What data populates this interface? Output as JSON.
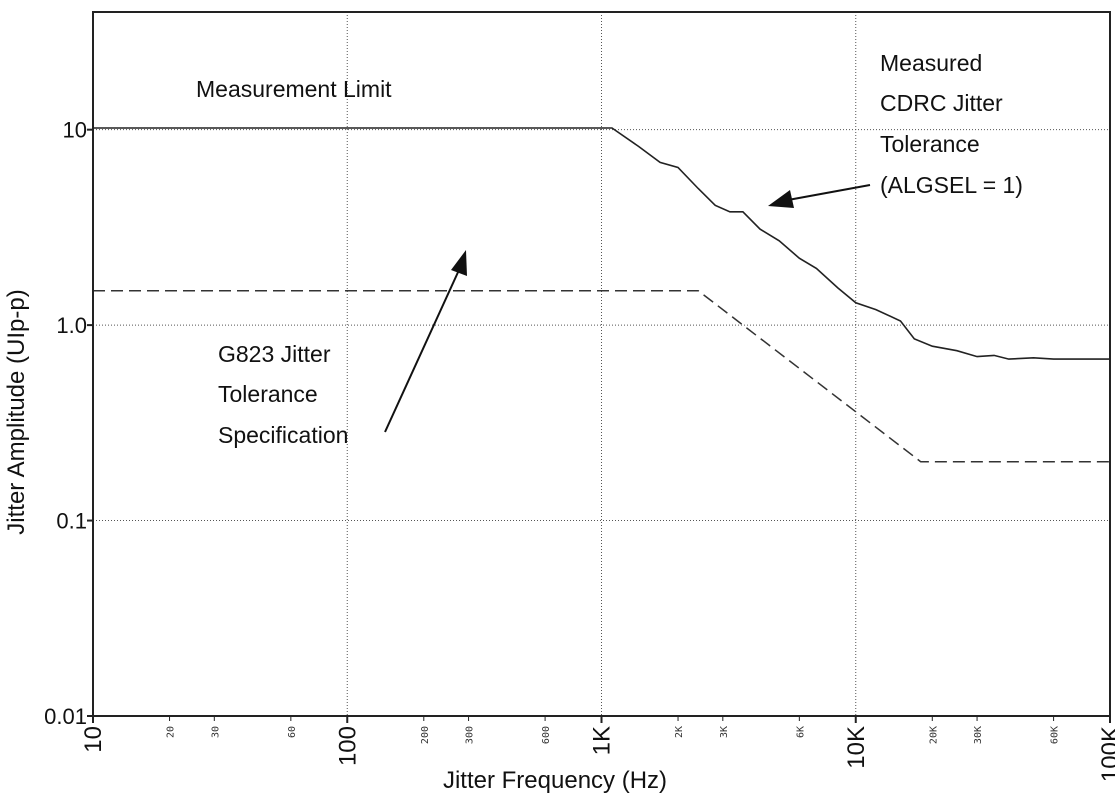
{
  "chart_data": {
    "type": "line",
    "xscale": "log",
    "yscale": "log",
    "xlabel": "Jitter Frequency (Hz)",
    "ylabel": "Jitter Amplitude (UIp-p)",
    "xlim": [
      10,
      100000
    ],
    "ylim": [
      0.01,
      40
    ],
    "grid": true,
    "y_ticks": [
      {
        "value": 0.01,
        "label": "0.01"
      },
      {
        "value": 0.1,
        "label": "0.1"
      },
      {
        "value": 1,
        "label": "1.0"
      },
      {
        "value": 10,
        "label": "10"
      }
    ],
    "x_ticks_major": [
      {
        "value": 10,
        "label": "10"
      },
      {
        "value": 100,
        "label": "100"
      },
      {
        "value": 1000,
        "label": "1K"
      },
      {
        "value": 10000,
        "label": "10K"
      },
      {
        "value": 100000,
        "label": "100K"
      }
    ],
    "x_ticks_minor": [
      {
        "value": 20,
        "label": "20"
      },
      {
        "value": 30,
        "label": "30"
      },
      {
        "value": 60,
        "label": "60"
      },
      {
        "value": 200,
        "label": "200"
      },
      {
        "value": 300,
        "label": "300"
      },
      {
        "value": 600,
        "label": "600"
      },
      {
        "value": 2000,
        "label": "2K"
      },
      {
        "value": 3000,
        "label": "3K"
      },
      {
        "value": 6000,
        "label": "6K"
      },
      {
        "value": 20000,
        "label": "20K"
      },
      {
        "value": 30000,
        "label": "30K"
      },
      {
        "value": 60000,
        "label": "60K"
      }
    ],
    "series": [
      {
        "style": "solid",
        "x": [
          10,
          100,
          1000,
          1100,
          1400,
          1700,
          2000,
          2400,
          2800,
          3200,
          3600,
          4200,
          5000,
          6000,
          7000,
          8500,
          10000,
          12000,
          15000,
          17000,
          20000,
          25000,
          30000,
          35000,
          40000,
          50000,
          60000,
          80000,
          100000
        ],
        "y": [
          10.2,
          10.2,
          10.2,
          10.2,
          8.2,
          6.8,
          6.4,
          5.0,
          4.1,
          3.8,
          3.8,
          3.1,
          2.7,
          2.2,
          1.95,
          1.55,
          1.3,
          1.2,
          1.05,
          0.85,
          0.78,
          0.74,
          0.69,
          0.7,
          0.67,
          0.68,
          0.67,
          0.67,
          0.67
        ]
      },
      {
        "style": "dashed",
        "x": [
          10,
          2400,
          18000,
          100000
        ],
        "y": [
          1.5,
          1.5,
          0.2,
          0.2
        ]
      }
    ],
    "annotations": [
      {
        "key": "limit",
        "lines": [
          "Measurement Limit"
        ]
      },
      {
        "key": "measured",
        "lines": [
          "Measured",
          "CDRC Jitter",
          "Tolerance",
          "(ALGSEL = 1)"
        ]
      },
      {
        "key": "spec",
        "lines": [
          "G823 Jitter",
          "Tolerance",
          "Specification"
        ]
      }
    ]
  }
}
